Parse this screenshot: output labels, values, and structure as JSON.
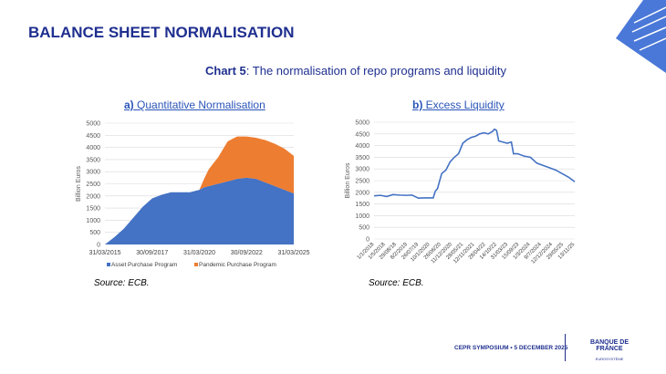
{
  "header": {
    "title": "BALANCE SHEET NORMALISATION",
    "chart_label": "Chart 5",
    "chart_caption": ":  The normalisation of repo programs and liquidity"
  },
  "footer": {
    "event": "CEPR SYMPOSIUM • 5 DECEMBER 2025",
    "logo": "BANQUE DE FRANCE",
    "logo_sub": "EUROSYSTÈME"
  },
  "colors": {
    "brand": "#1f2f8f",
    "asset": "#4472c4",
    "pandemic": "#ed7d31"
  },
  "chart_data": [
    {
      "type": "area",
      "stacked": true,
      "title_prefix": "a)",
      "title": "Quantitative Normalisation",
      "ylabel": "Billion Euros",
      "ylim": [
        0,
        5000
      ],
      "yticks": [
        0,
        500,
        1000,
        1500,
        2000,
        2500,
        3000,
        3500,
        4000,
        4500,
        5000
      ],
      "xtick_labels": [
        "31/03/2015",
        "30/09/2017",
        "31/03/2020",
        "30/09/2022",
        "31/03/2025"
      ],
      "grid": true,
      "legend": "bottom",
      "source": "Source: ECB.",
      "x": [
        "2015-03",
        "2015-09",
        "2016-03",
        "2016-09",
        "2017-03",
        "2017-09",
        "2018-03",
        "2018-09",
        "2019-03",
        "2019-09",
        "2020-03",
        "2020-06",
        "2020-09",
        "2021-03",
        "2021-09",
        "2022-03",
        "2022-09",
        "2023-03",
        "2023-09",
        "2024-03",
        "2024-09",
        "2025-03"
      ],
      "series": [
        {
          "name": "Asset Purchase Program",
          "values": [
            0,
            300,
            650,
            1100,
            1550,
            1900,
            2050,
            2150,
            2150,
            2150,
            2250,
            2350,
            2400,
            2500,
            2600,
            2700,
            2750,
            2700,
            2550,
            2400,
            2250,
            2100
          ]
        },
        {
          "name": "Pandemic Purchase Program",
          "values": [
            0,
            0,
            0,
            0,
            0,
            0,
            0,
            0,
            0,
            0,
            0,
            350,
            700,
            1100,
            1650,
            1750,
            1700,
            1700,
            1750,
            1750,
            1700,
            1550
          ]
        }
      ]
    },
    {
      "type": "line",
      "title_prefix": "b)",
      "title": "Excess Liquidity",
      "ylabel": "Billion Euros",
      "ylim": [
        0,
        5000
      ],
      "yticks": [
        0,
        500,
        1000,
        1500,
        2000,
        2500,
        3000,
        3500,
        4000,
        4500,
        5000
      ],
      "xtick_labels": [
        "1/1/2018",
        "1/5/2018",
        "29/08/18",
        "8/2/2019",
        "26/07/19",
        "10/1/2020",
        "26/06/20",
        "11/12/2020",
        "28/05/21",
        "12/11/2021",
        "28/04/22",
        "14/10/22",
        "31/03/23",
        "15/09/23",
        "1/3/2024",
        "9/7/2024",
        "12/12/2024",
        "29/05/25",
        "13/11/25"
      ],
      "grid": true,
      "source": "Source: ECB.",
      "x": [
        "2018-01",
        "2018-04",
        "2018-07",
        "2018-10",
        "2019-01",
        "2019-04",
        "2019-07",
        "2019-10",
        "2020-01",
        "2020-03",
        "2020-05",
        "2020-06",
        "2020-07",
        "2020-09",
        "2020-11",
        "2021-01",
        "2021-03",
        "2021-05",
        "2021-07",
        "2021-09",
        "2021-11",
        "2022-01",
        "2022-03",
        "2022-05",
        "2022-07",
        "2022-09",
        "2022-10",
        "2022-11",
        "2022-12",
        "2023-02",
        "2023-04",
        "2023-06",
        "2023-07",
        "2023-09",
        "2023-12",
        "2024-03",
        "2024-06",
        "2024-09",
        "2024-12",
        "2025-03",
        "2025-06",
        "2025-09",
        "2025-12"
      ],
      "values": [
        1850,
        1870,
        1820,
        1900,
        1880,
        1870,
        1880,
        1750,
        1760,
        1760,
        1760,
        2050,
        2150,
        2800,
        2950,
        3300,
        3500,
        3650,
        4100,
        4250,
        4350,
        4400,
        4500,
        4550,
        4500,
        4600,
        4700,
        4650,
        4200,
        4150,
        4100,
        4150,
        3650,
        3650,
        3550,
        3500,
        3250,
        3150,
        3050,
        2950,
        2800,
        2650,
        2450
      ]
    }
  ]
}
